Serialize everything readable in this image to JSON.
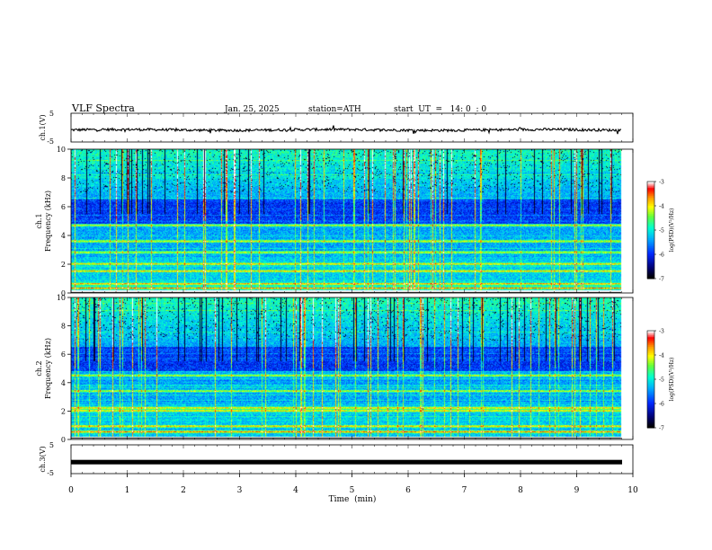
{
  "header": {
    "title": "VLF  Spectra",
    "date": "Jan. 25, 2025",
    "station": "station=ATH",
    "start_ut": "start  UT  =   14: 0  : 0"
  },
  "colors": {
    "spectrogram_low": "#000060",
    "spectrogram_mid": "#00e0c0",
    "spectrogram_high": "#ff0000",
    "colorbar": [
      "#ffffff",
      "#ff2020",
      "#ffa000",
      "#ffff00",
      "#60ff40",
      "#00ffd0",
      "#00a0ff",
      "#0000ff",
      "#00008c",
      "#000000"
    ]
  },
  "chart_data": [
    {
      "type": "line",
      "ylabel": "ch.1(V)",
      "ylim": [
        -5,
        5
      ],
      "y_ticks": [
        "5",
        "-5"
      ],
      "xlim": [
        0,
        10
      ],
      "signal_level": -0.8,
      "signal_noise": "small fluctuations"
    },
    {
      "type": "heatmap",
      "ylabel_line1": "ch.1",
      "ylabel_line2": "Frequency  (kHz)",
      "ylim": [
        0,
        10
      ],
      "y_ticks": [
        "0",
        "2",
        "4",
        "6",
        "8",
        "10"
      ],
      "xlim": [
        0,
        10
      ],
      "colorbar": {
        "label": "log(PSD)(V²/Hz)",
        "range": [
          -7,
          -3
        ],
        "ticks": [
          "-3",
          "-4",
          "-5",
          "-6",
          "-7"
        ]
      },
      "strong_bands_khz": [
        0.3,
        0.6,
        1.5,
        2.0,
        2.8,
        3.6,
        4.7
      ]
    },
    {
      "type": "heatmap",
      "ylabel_line1": "ch.2",
      "ylabel_line2": "Frequency  (kHz)",
      "ylim": [
        0,
        10
      ],
      "y_ticks": [
        "0",
        "2",
        "4",
        "6",
        "8",
        "10"
      ],
      "xlim": [
        0,
        10
      ],
      "colorbar": {
        "label": "log(PSD)(V²/Hz)",
        "range": [
          -7,
          -3
        ],
        "ticks": [
          "-3",
          "-4",
          "-5",
          "-6",
          "-7"
        ]
      },
      "strong_bands_khz": [
        0.5,
        0.9,
        2.0,
        2.2,
        3.4,
        4.5
      ]
    },
    {
      "type": "line",
      "ylabel": "ch.3(V)",
      "ylim": [
        -5,
        5
      ],
      "y_ticks": [
        "5",
        "-5"
      ],
      "xlim": [
        0,
        10
      ],
      "x_ticks": [
        "0",
        "1",
        "2",
        "3",
        "4",
        "5",
        "6",
        "7",
        "8",
        "9",
        "10"
      ],
      "xlabel": "Time  (min)",
      "signal_level": -1.0
    }
  ]
}
